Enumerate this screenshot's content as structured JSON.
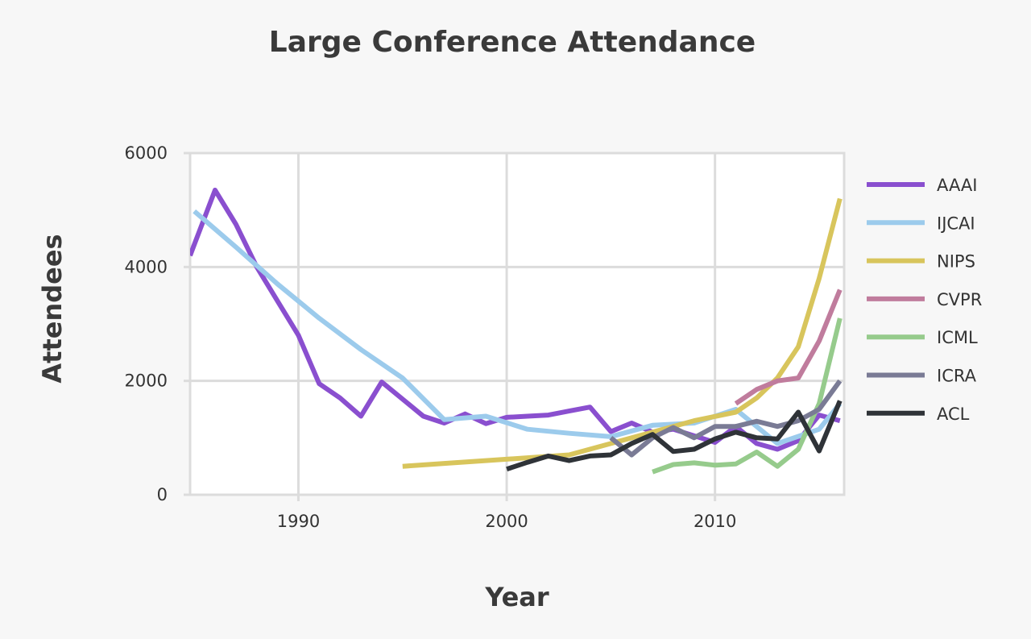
{
  "chart_data": {
    "type": "line",
    "title": "Large Conference Attendance",
    "xlabel": "Year",
    "ylabel": "Attendees",
    "xlim": [
      1984.8,
      2016.2
    ],
    "ylim": [
      0,
      6000
    ],
    "x_ticks": [
      1990,
      2000,
      2010
    ],
    "y_ticks": [
      0,
      2000,
      4000,
      6000
    ],
    "grid": true,
    "legend_position": "right",
    "series": [
      {
        "name": "AAAI",
        "color": "#8a4fcf",
        "x": [
          1984.8,
          1986,
          1987,
          1988,
          1989,
          1990,
          1991,
          1992,
          1993,
          1994,
          1995,
          1996,
          1997,
          1998,
          1999,
          2000,
          2001,
          2002,
          2003,
          2004,
          2005,
          2006,
          2007,
          2008,
          2010,
          2011,
          2012,
          2013,
          2014,
          2015,
          2016
        ],
        "y": [
          4200,
          5350,
          4750,
          4000,
          3400,
          2800,
          1950,
          1700,
          1380,
          1980,
          1680,
          1380,
          1260,
          1420,
          1250,
          1360,
          1380,
          1400,
          1470,
          1540,
          1110,
          1260,
          1100,
          1150,
          920,
          1200,
          900,
          800,
          950,
          1400,
          1300
        ]
      },
      {
        "name": "IJCAI",
        "color": "#9ccbec",
        "x": [
          1985,
          1987,
          1989,
          1991,
          1993,
          1995,
          1997,
          1999,
          2001,
          2003,
          2005,
          2007,
          2009,
          2011,
          2013,
          2015,
          2016
        ],
        "y": [
          4980,
          4350,
          3700,
          3100,
          2550,
          2050,
          1320,
          1380,
          1150,
          1080,
          1020,
          1220,
          1260,
          1500,
          900,
          1150,
          1600
        ]
      },
      {
        "name": "NIPS",
        "color": "#d8c55c",
        "x": [
          1995,
          1997,
          1999,
          2001,
          2003,
          2005,
          2007,
          2009,
          2011,
          2012,
          2013,
          2014,
          2015,
          2016
        ],
        "y": [
          500,
          550,
          600,
          650,
          700,
          900,
          1100,
          1300,
          1450,
          1700,
          2050,
          2600,
          3800,
          5200
        ]
      },
      {
        "name": "CVPR",
        "color": "#c07c9d",
        "x": [
          2011,
          2012,
          2013,
          2014,
          2015,
          2016
        ],
        "y": [
          1600,
          1850,
          2000,
          2050,
          2700,
          3600
        ]
      },
      {
        "name": "ICML",
        "color": "#96cb8c",
        "x": [
          2007,
          2008,
          2009,
          2010,
          2011,
          2012,
          2013,
          2014,
          2015,
          2016
        ],
        "y": [
          400,
          530,
          560,
          520,
          540,
          750,
          500,
          800,
          1600,
          3100
        ]
      },
      {
        "name": "ICRA",
        "color": "#7a7b95",
        "x": [
          2005,
          2006,
          2007,
          2008,
          2009,
          2010,
          2011,
          2012,
          2013,
          2014,
          2015,
          2016
        ],
        "y": [
          1000,
          700,
          1000,
          1180,
          1000,
          1200,
          1200,
          1290,
          1200,
          1300,
          1500,
          2000
        ]
      },
      {
        "name": "ACL",
        "color": "#2f3338",
        "x": [
          2000,
          2001,
          2002,
          2003,
          2004,
          2005,
          2006,
          2007,
          2008,
          2009,
          2010,
          2011,
          2012,
          2013,
          2014,
          2015,
          2016
        ],
        "y": [
          450,
          570,
          680,
          600,
          680,
          700,
          900,
          1060,
          760,
          800,
          980,
          1100,
          1000,
          980,
          1450,
          770,
          1650
        ]
      }
    ]
  }
}
